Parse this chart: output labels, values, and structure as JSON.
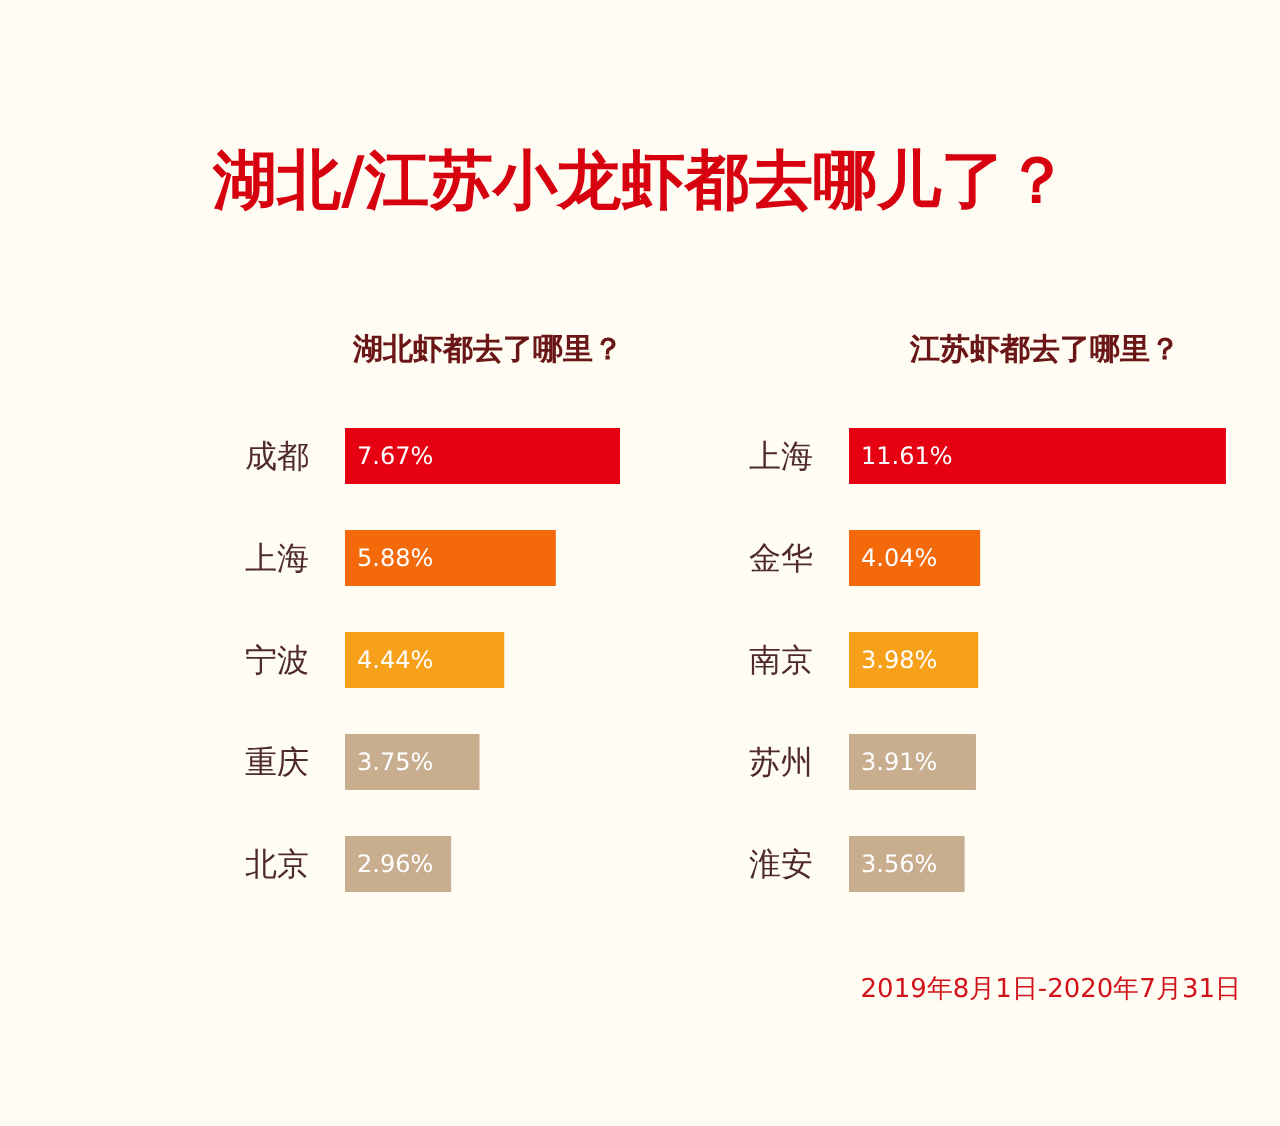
{
  "chart_data": [
    {
      "type": "other",
      "title": "湖北/江苏小龙虾都去哪儿了？"
    },
    {
      "type": "bar",
      "orientation": "horizontal",
      "title": "湖北虾都去了哪里？",
      "categories": [
        "成都",
        "上海",
        "宁波",
        "重庆",
        "北京"
      ],
      "values": [
        7.67,
        5.88,
        4.44,
        3.75,
        2.96
      ],
      "value_labels": [
        "7.67%",
        "5.88%",
        "4.44%",
        "3.75%",
        "2.96%"
      ],
      "colors": [
        "#e50012",
        "#f4690a",
        "#f7a11a",
        "#c8ad8e",
        "#c8ad8e"
      ],
      "tick_labels": "y"
    },
    {
      "type": "bar",
      "orientation": "horizontal",
      "title": "江苏虾都去了哪里？",
      "categories": [
        "上海",
        "金华",
        "南京",
        "苏州",
        "淮安"
      ],
      "values": [
        11.61,
        4.04,
        3.98,
        3.91,
        3.56
      ],
      "value_labels": [
        "11.61%",
        "4.04%",
        "3.98%",
        "3.91%",
        "3.56%"
      ],
      "colors": [
        "#e50012",
        "#f4690a",
        "#f7a11a",
        "#c8ad8e",
        "#c8ad8e"
      ],
      "tick_labels": "y",
      "annotations": [
        "2019年8月1日-2020年7月31日"
      ]
    }
  ]
}
